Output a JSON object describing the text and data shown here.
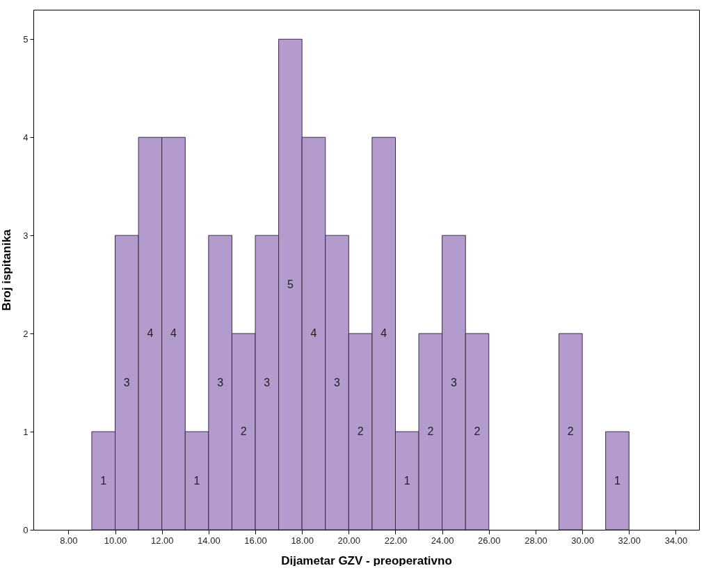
{
  "chart_data": {
    "type": "histogram",
    "xlabel": "Dijametar GZV - preoperativno",
    "ylabel": "Broj ispitanika",
    "bins": [
      9,
      10,
      11,
      12,
      13,
      14,
      15,
      16,
      17,
      18,
      19,
      20,
      21,
      22,
      23,
      24,
      25,
      26,
      27,
      28,
      29,
      30,
      31,
      32
    ],
    "values": [
      1,
      3,
      4,
      4,
      1,
      3,
      2,
      3,
      5,
      4,
      3,
      2,
      4,
      1,
      2,
      3,
      2,
      0,
      0,
      0,
      2,
      0,
      1
    ],
    "value_labels": [
      "1",
      "3",
      "4",
      "4",
      "1",
      "3",
      "2",
      "3",
      "5",
      "4",
      "3",
      "2",
      "4",
      "1",
      "2",
      "3",
      "2",
      null,
      null,
      null,
      "2",
      null,
      "1"
    ],
    "color": "#b39bcd",
    "xlim": [
      6.5,
      35
    ],
    "xticks": [
      {
        "value": 8,
        "label": "8.00"
      },
      {
        "value": 10,
        "label": "10.00"
      },
      {
        "value": 12,
        "label": "12.00"
      },
      {
        "value": 14,
        "label": "14.00"
      },
      {
        "value": 16,
        "label": "16.00"
      },
      {
        "value": 18,
        "label": "18.00"
      },
      {
        "value": 20,
        "label": "20.00"
      },
      {
        "value": 22,
        "label": "22.00"
      },
      {
        "value": 24,
        "label": "24.00"
      },
      {
        "value": 26,
        "label": "26.00"
      },
      {
        "value": 28,
        "label": "28.00"
      },
      {
        "value": 30,
        "label": "30.00"
      },
      {
        "value": 32,
        "label": "32.00"
      },
      {
        "value": 34,
        "label": "34.00"
      }
    ],
    "ylim": [
      0,
      5.3
    ],
    "yticks": [
      0,
      1,
      2,
      3,
      4,
      5
    ],
    "grid": false
  }
}
